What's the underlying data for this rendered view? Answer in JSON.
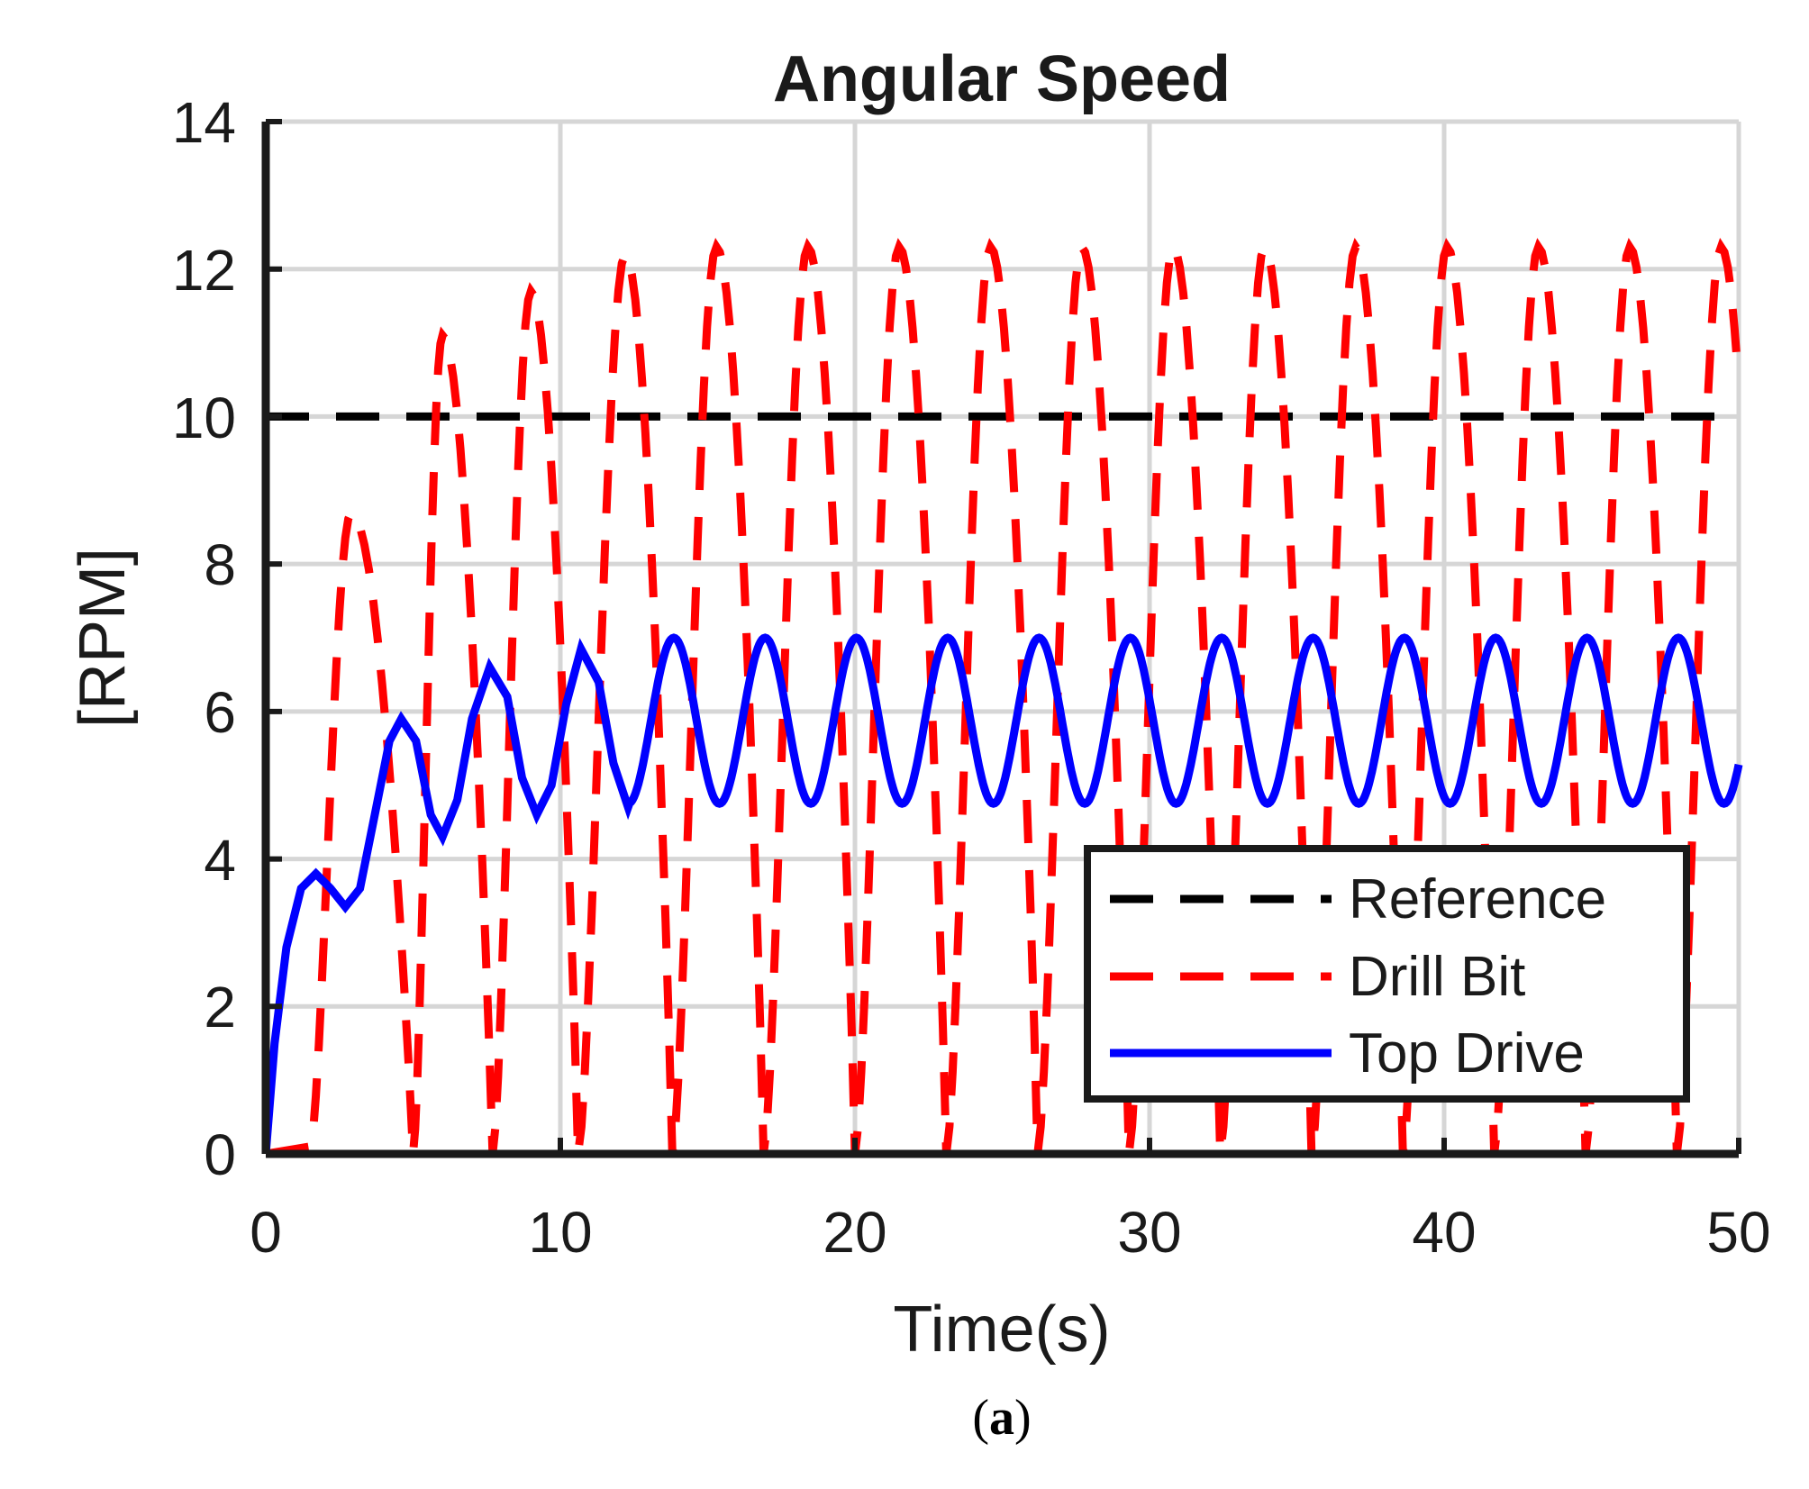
{
  "chart_data": {
    "type": "line",
    "title": "Angular Speed",
    "xlabel": "Time(s)",
    "ylabel": "[RPM]",
    "xlim": [
      0,
      50
    ],
    "ylim": [
      0,
      14
    ],
    "xticks": [
      0,
      10,
      20,
      30,
      40,
      50
    ],
    "yticks": [
      0,
      2,
      4,
      6,
      8,
      10,
      12,
      14
    ],
    "x_tick_labels": [
      "0",
      "10",
      "20",
      "30",
      "40",
      "50"
    ],
    "y_tick_labels": [
      "0",
      "2",
      "4",
      "6",
      "8",
      "10",
      "12",
      "14"
    ],
    "grid": true,
    "legend_position": "bottom-right",
    "caption": {
      "open": "(",
      "letter": "a",
      "close": ")"
    },
    "series": [
      {
        "name": "Reference",
        "style": "dashed",
        "color": "#000000",
        "x": [
          0,
          50
        ],
        "y": [
          10,
          10
        ]
      },
      {
        "name": "Drill Bit",
        "style": "dashed",
        "color": "#ff0000",
        "peaks": [
          {
            "t0": 1.5,
            "rise_end": 2.9,
            "fall_end": 5.0,
            "peak": 8.7
          },
          {
            "t0": 5.0,
            "rise_end": 6.0,
            "fall_end": 7.7,
            "peak": 11.1
          },
          {
            "t0": 7.7,
            "rise_end": 9.0,
            "fall_end": 10.6,
            "peak": 11.7
          },
          {
            "t0": 10.6,
            "rise_end": 12.2,
            "fall_end": 13.8,
            "peak": 12.2
          },
          {
            "t0": 13.8,
            "rise_end": 15.3,
            "fall_end": 16.9,
            "peak": 12.3
          },
          {
            "t0": 16.9,
            "rise_end": 18.4,
            "fall_end": 20.0,
            "peak": 12.3
          },
          {
            "t0": 20.0,
            "rise_end": 21.5,
            "fall_end": 23.1,
            "peak": 12.3
          },
          {
            "t0": 23.1,
            "rise_end": 24.6,
            "fall_end": 26.2,
            "peak": 12.3
          },
          {
            "t0": 26.2,
            "rise_end": 27.7,
            "fall_end": 29.3,
            "peak": 12.3
          },
          {
            "t0": 29.3,
            "rise_end": 30.8,
            "fall_end": 32.4,
            "peak": 12.3
          },
          {
            "t0": 32.4,
            "rise_end": 33.9,
            "fall_end": 35.5,
            "peak": 12.3
          },
          {
            "t0": 35.5,
            "rise_end": 37.0,
            "fall_end": 38.6,
            "peak": 12.3
          },
          {
            "t0": 38.6,
            "rise_end": 40.1,
            "fall_end": 41.7,
            "peak": 12.3
          },
          {
            "t0": 41.7,
            "rise_end": 43.2,
            "fall_end": 44.8,
            "peak": 12.3
          },
          {
            "t0": 44.8,
            "rise_end": 46.3,
            "fall_end": 47.9,
            "peak": 12.3
          },
          {
            "t0": 47.9,
            "rise_end": 49.4,
            "fall_end": 51.0,
            "peak": 12.3
          }
        ]
      },
      {
        "name": "Top Drive",
        "style": "solid",
        "color": "#0000ff",
        "points": [
          [
            0,
            0
          ],
          [
            0.3,
            1.5
          ],
          [
            0.7,
            2.8
          ],
          [
            1.2,
            3.6
          ],
          [
            1.7,
            3.8
          ],
          [
            2.2,
            3.6
          ],
          [
            2.7,
            3.35
          ],
          [
            3.2,
            3.6
          ],
          [
            3.7,
            4.6
          ],
          [
            4.2,
            5.6
          ],
          [
            4.6,
            5.9
          ],
          [
            5.1,
            5.6
          ],
          [
            5.6,
            4.6
          ],
          [
            6.0,
            4.3
          ],
          [
            6.5,
            4.8
          ],
          [
            7.0,
            5.9
          ],
          [
            7.6,
            6.6
          ],
          [
            8.2,
            6.2
          ],
          [
            8.7,
            5.1
          ],
          [
            9.2,
            4.6
          ],
          [
            9.7,
            5.0
          ],
          [
            10.2,
            6.1
          ],
          [
            10.7,
            6.85
          ],
          [
            11.3,
            6.4
          ],
          [
            11.8,
            5.3
          ],
          [
            12.3,
            4.7
          ]
        ],
        "steady": {
          "start": 12.3,
          "period": 3.1,
          "min": 4.75,
          "max": 7.0,
          "end": 50,
          "end_value": 5.6
        }
      }
    ]
  }
}
